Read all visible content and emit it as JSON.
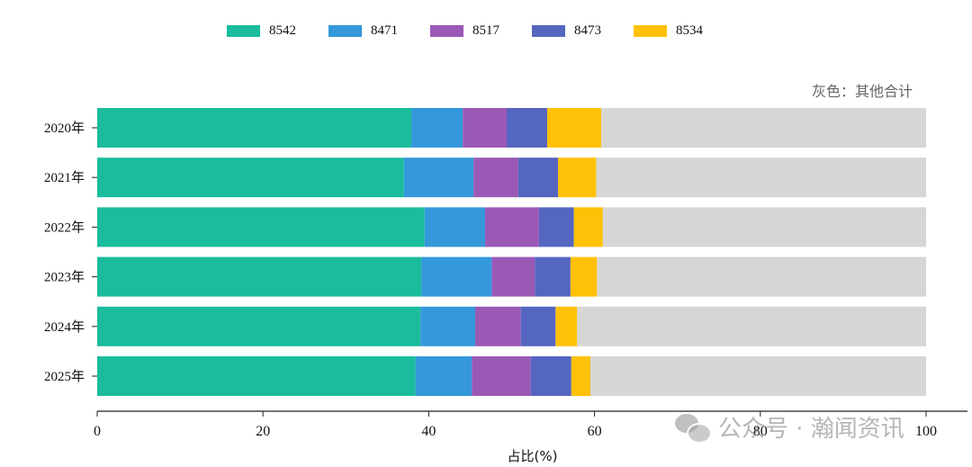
{
  "chart_data": {
    "type": "bar",
    "orientation": "horizontal",
    "stacked": true,
    "categories": [
      "2020年",
      "2021年",
      "2022年",
      "2023年",
      "2024年",
      "2025年"
    ],
    "series": [
      {
        "name": "8542",
        "color": "#1abc9c",
        "values": [
          37.9,
          37.0,
          39.5,
          39.1,
          39.0,
          38.4
        ]
      },
      {
        "name": "8471",
        "color": "#3498db",
        "values": [
          6.2,
          8.4,
          7.3,
          8.5,
          6.6,
          6.8
        ]
      },
      {
        "name": "8517",
        "color": "#9b59b6",
        "values": [
          5.3,
          5.4,
          6.5,
          5.2,
          5.5,
          7.1
        ]
      },
      {
        "name": "8473",
        "color": "#5566c0",
        "values": [
          4.9,
          4.8,
          4.2,
          4.3,
          4.2,
          4.9
        ]
      },
      {
        "name": "8534",
        "color": "#ffc107",
        "values": [
          6.5,
          4.6,
          3.5,
          3.2,
          2.6,
          2.3
        ]
      },
      {
        "name": "",
        "color": "#d6d6d4",
        "values": [
          39.2,
          39.8,
          39.0,
          39.7,
          42.1,
          40.5
        ]
      }
    ],
    "xlabel": "占比(%)",
    "ylabel": "",
    "xlim": [
      0,
      100
    ],
    "xticks": [
      0,
      20,
      40,
      60,
      80,
      100
    ],
    "legend_position": "top",
    "annotation": "灰色：其他合计",
    "grid": false
  },
  "watermark": "公众号 · 瀚闻资讯"
}
